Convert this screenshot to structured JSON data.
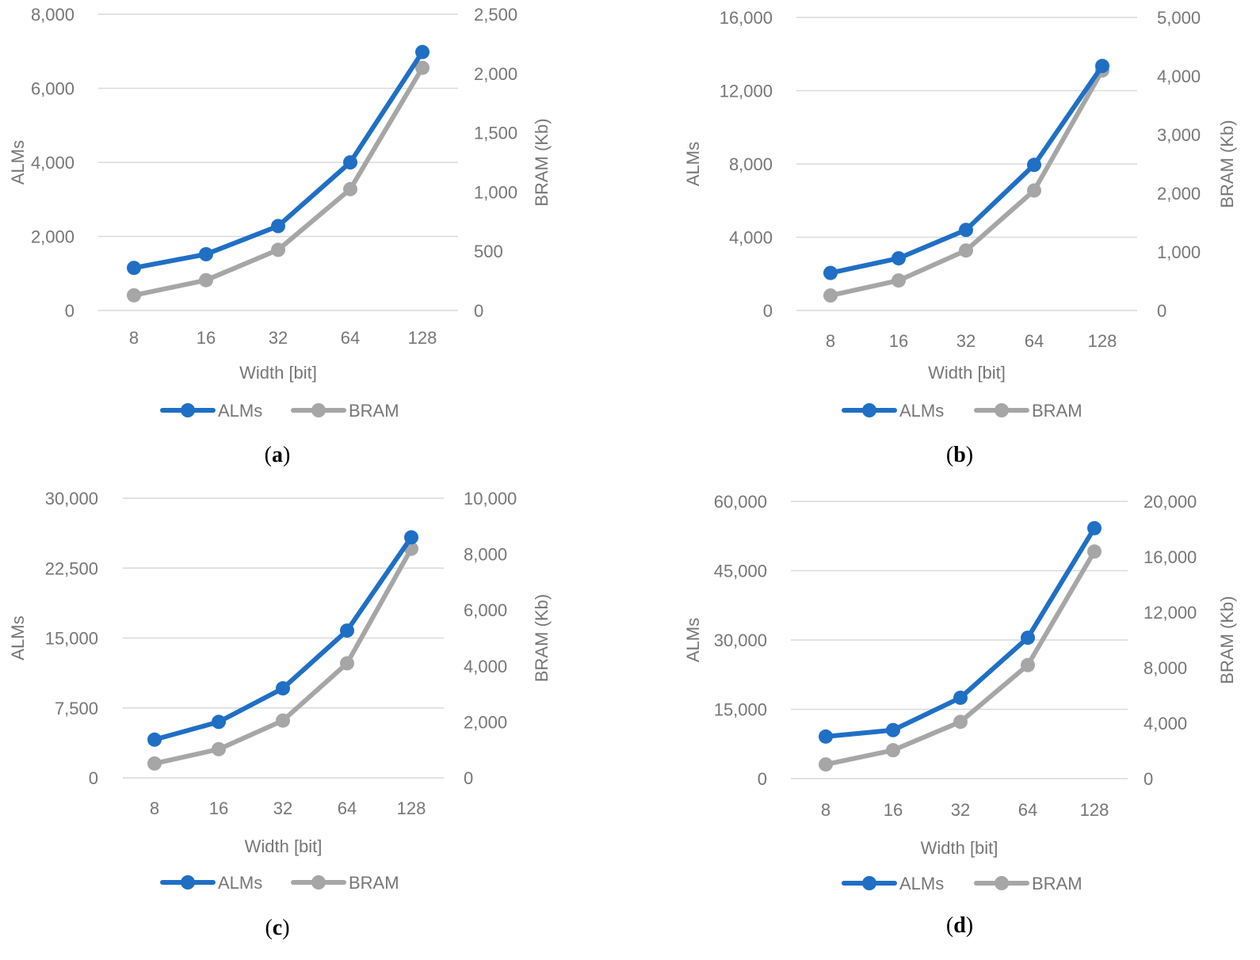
{
  "colors": {
    "alms": "#1f6fc5",
    "bram": "#a6a6a6",
    "grid": "#d9d9d9",
    "text": "#767676"
  },
  "chart_data": [
    {
      "type": "line",
      "caption": "a",
      "categories": [
        "8",
        "16",
        "32",
        "64",
        "128"
      ],
      "xlabel": "Width [bit]",
      "ylabel": "ALMs",
      "ylabel_right": "BRAM (Kb)",
      "ylim": [
        0,
        8000
      ],
      "y_ticks": [
        0,
        2000,
        4000,
        6000,
        8000
      ],
      "y_tick_labels": [
        "0",
        "2,000",
        "4,000",
        "6,000",
        "8,000"
      ],
      "ylim_right": [
        0,
        2500
      ],
      "y_ticks_right": [
        0,
        500,
        1000,
        1500,
        2000,
        2500
      ],
      "y_tick_labels_right": [
        "0",
        "500",
        "1,000",
        "1,500",
        "2,000",
        "2,500"
      ],
      "legend": "bottom",
      "series": [
        {
          "name": "ALMs",
          "axis": "left",
          "values": [
            1150,
            1520,
            2280,
            4000,
            6980
          ]
        },
        {
          "name": "BRAM",
          "axis": "right",
          "values": [
            128,
            256,
            512,
            1024,
            2048
          ]
        }
      ]
    },
    {
      "type": "line",
      "caption": "b",
      "categories": [
        "8",
        "16",
        "32",
        "64",
        "128"
      ],
      "xlabel": "Width [bit]",
      "ylabel": "ALMs",
      "ylabel_right": "BRAM (Kb)",
      "ylim": [
        0,
        16000
      ],
      "y_ticks": [
        0,
        4000,
        8000,
        12000,
        16000
      ],
      "y_tick_labels": [
        "0",
        "4,000",
        "8,000",
        "12,000",
        "16,000"
      ],
      "ylim_right": [
        0,
        5000
      ],
      "y_ticks_right": [
        0,
        1000,
        2000,
        3000,
        4000,
        5000
      ],
      "y_tick_labels_right": [
        "0",
        "1,000",
        "2,000",
        "3,000",
        "4,000",
        "5,000"
      ],
      "legend": "bottom",
      "series": [
        {
          "name": "ALMs",
          "axis": "left",
          "values": [
            2050,
            2850,
            4400,
            7950,
            13350
          ]
        },
        {
          "name": "BRAM",
          "axis": "right",
          "values": [
            256,
            512,
            1024,
            2048,
            4096
          ]
        }
      ]
    },
    {
      "type": "line",
      "caption": "c",
      "categories": [
        "8",
        "16",
        "32",
        "64",
        "128"
      ],
      "xlabel": "Width [bit]",
      "ylabel": "ALMs",
      "ylabel_right": "BRAM (Kb)",
      "ylim": [
        0,
        30000
      ],
      "y_ticks": [
        0,
        7500,
        15000,
        22500,
        30000
      ],
      "y_tick_labels": [
        "0",
        "7,500",
        "15,000",
        "22,500",
        "30,000"
      ],
      "ylim_right": [
        0,
        10000
      ],
      "y_ticks_right": [
        0,
        2000,
        4000,
        6000,
        8000,
        10000
      ],
      "y_tick_labels_right": [
        "0",
        "2,000",
        "4,000",
        "6,000",
        "8,000",
        "10,000"
      ],
      "legend": "bottom",
      "series": [
        {
          "name": "ALMs",
          "axis": "left",
          "values": [
            4100,
            6000,
            9600,
            15800,
            25800
          ]
        },
        {
          "name": "BRAM",
          "axis": "right",
          "values": [
            512,
            1024,
            2048,
            4096,
            8192
          ]
        }
      ]
    },
    {
      "type": "line",
      "caption": "d",
      "categories": [
        "8",
        "16",
        "32",
        "64",
        "128"
      ],
      "xlabel": "Width [bit]",
      "ylabel": "ALMs",
      "ylabel_right": "BRAM (Kb)",
      "ylim": [
        0,
        60000
      ],
      "y_ticks": [
        0,
        15000,
        30000,
        45000,
        60000
      ],
      "y_tick_labels": [
        "0",
        "15,000",
        "30,000",
        "45,000",
        "60,000"
      ],
      "ylim_right": [
        0,
        20000
      ],
      "y_ticks_right": [
        0,
        4000,
        8000,
        12000,
        16000,
        20000
      ],
      "y_tick_labels_right": [
        "0",
        "4,000",
        "8,000",
        "12,000",
        "16,000",
        "20,000"
      ],
      "legend": "bottom",
      "series": [
        {
          "name": "ALMs",
          "axis": "left",
          "values": [
            9100,
            10500,
            17500,
            30500,
            54200
          ]
        },
        {
          "name": "BRAM",
          "axis": "right",
          "values": [
            1024,
            2048,
            4096,
            8192,
            16384
          ]
        }
      ]
    }
  ]
}
